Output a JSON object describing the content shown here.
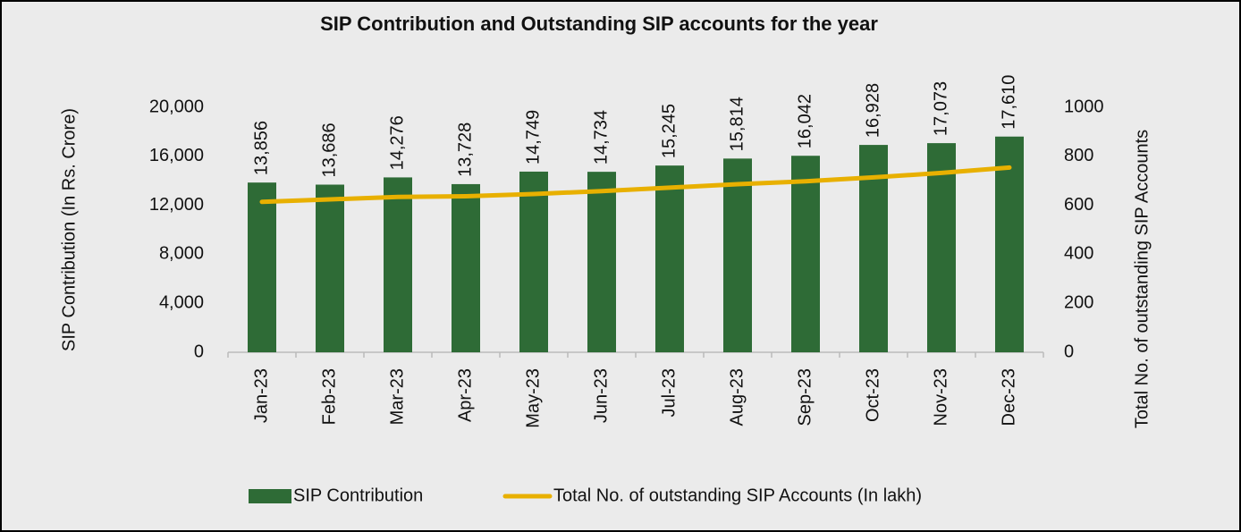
{
  "chart_data": {
    "type": "bar_line",
    "title": "SIP Contribution and Outstanding SIP accounts for the year",
    "ylabel": "SIP Contribution (In Rs. Crore)",
    "y2label": "Total No. of outstanding SIP Accounts",
    "categories": [
      "Jan-23",
      "Feb-23",
      "Mar-23",
      "Apr-23",
      "May-23",
      "Jun-23",
      "Jul-23",
      "Aug-23",
      "Sep-23",
      "Oct-23",
      "Nov-23",
      "Dec-23"
    ],
    "series": [
      {
        "name": "SIP Contribution",
        "type": "bar",
        "color": "#2e6b36",
        "values": [
          13856,
          13686,
          14276,
          13728,
          14749,
          14734,
          15245,
          15814,
          16042,
          16928,
          17073,
          17610
        ],
        "value_labels": [
          "13,856",
          "13,686",
          "14,276",
          "13,728",
          "14,749",
          "14,734",
          "15,245",
          "15,814",
          "16,042",
          "16,928",
          "17,073",
          "17,610"
        ]
      },
      {
        "name": "Total No. of outstanding SIP Accounts (In lakh)",
        "type": "line",
        "axis": "y2",
        "color": "#e8b000",
        "values": [
          614,
          624,
          634,
          637,
          646,
          658,
          672,
          686,
          698,
          714,
          732,
          754
        ]
      }
    ],
    "ylim": [
      0,
      20000
    ],
    "yticks": [
      {
        "value": 0,
        "label": "0"
      },
      {
        "value": 4000,
        "label": "4,000"
      },
      {
        "value": 8000,
        "label": "8,000"
      },
      {
        "value": 12000,
        "label": "12,000"
      },
      {
        "value": 16000,
        "label": "16,000"
      },
      {
        "value": 20000,
        "label": "20,000"
      }
    ],
    "y2lim": [
      0,
      1000
    ],
    "y2ticks": [
      0,
      200,
      400,
      600,
      800,
      1000
    ]
  }
}
